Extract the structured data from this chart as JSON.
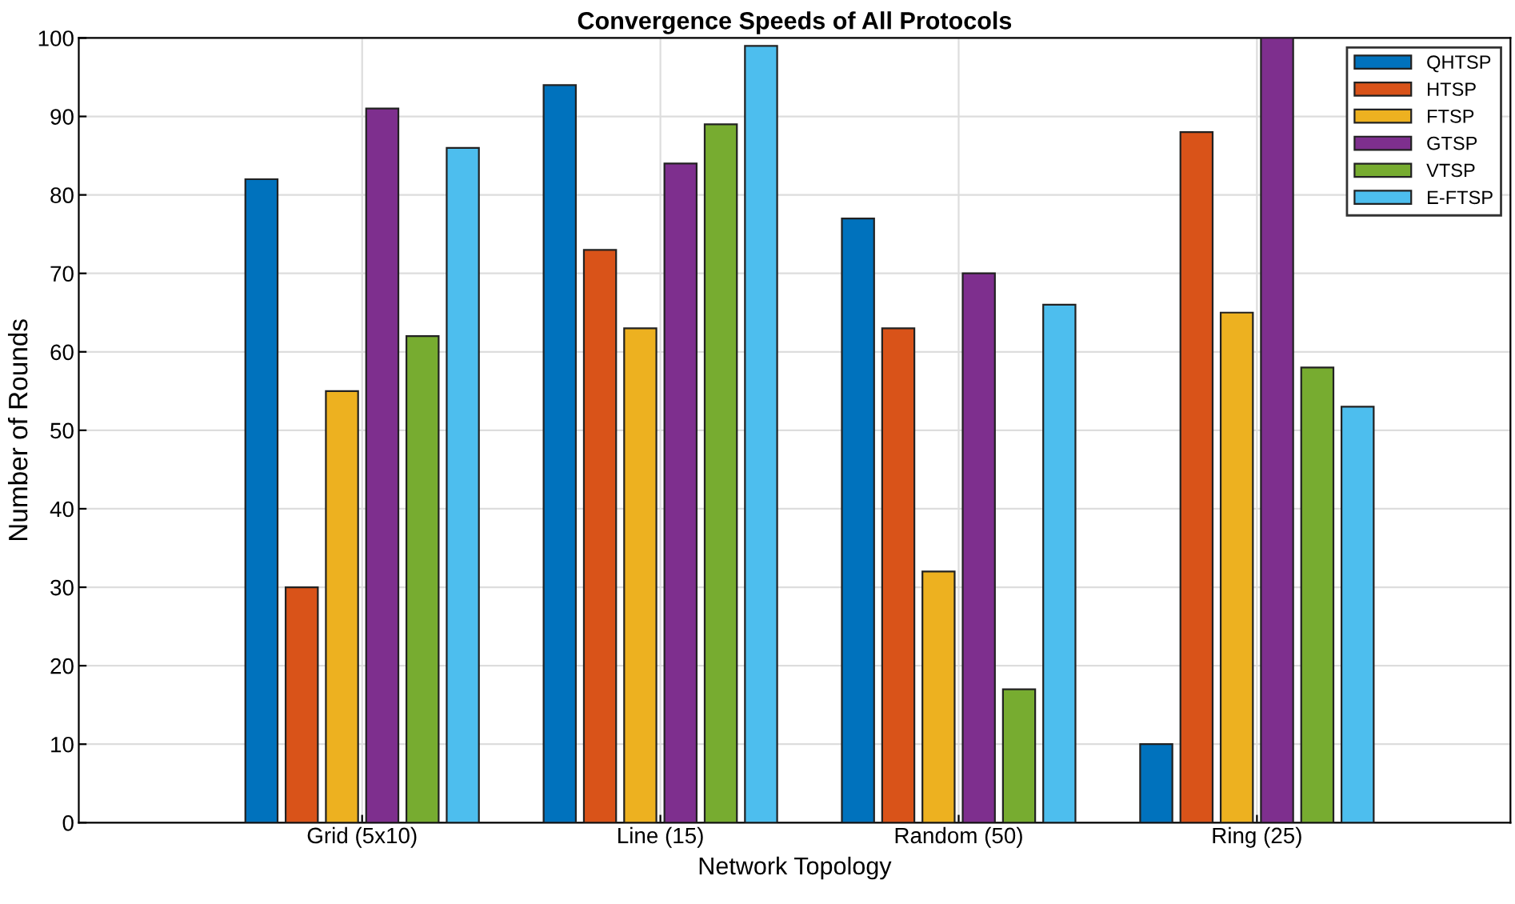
{
  "chart_data": {
    "type": "bar",
    "title": "Convergence Speeds of All Protocols",
    "xlabel": "Network Topology",
    "ylabel": "Number of Rounds",
    "categories": [
      "Grid (5x10)",
      "Line (15)",
      "Random (50)",
      "Ring (25)"
    ],
    "series": [
      {
        "name": "QHTSP",
        "color": "#0072bd",
        "values": [
          82,
          94,
          77,
          10
        ]
      },
      {
        "name": "HTSP",
        "color": "#d95319",
        "values": [
          30,
          73,
          63,
          88
        ]
      },
      {
        "name": "FTSP",
        "color": "#edb120",
        "values": [
          55,
          63,
          32,
          65
        ]
      },
      {
        "name": "GTSP",
        "color": "#7e2f8e",
        "values": [
          91,
          84,
          70,
          100
        ]
      },
      {
        "name": "VTSP",
        "color": "#77ac30",
        "values": [
          62,
          89,
          17,
          58
        ]
      },
      {
        "name": "E-FTSP",
        "color": "#4dbeee",
        "values": [
          86,
          99,
          66,
          53
        ]
      }
    ],
    "ylim": [
      0,
      100
    ],
    "yticks": [
      0,
      10,
      20,
      30,
      40,
      50,
      60,
      70,
      80,
      90,
      100
    ],
    "grid": true,
    "legend": "top right"
  }
}
